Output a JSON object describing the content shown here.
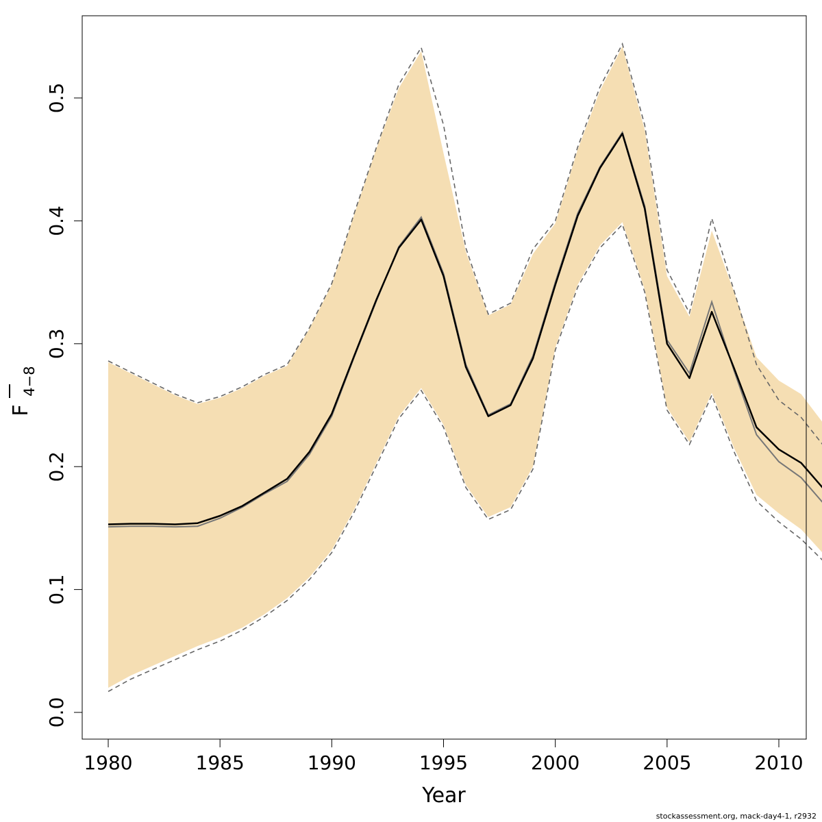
{
  "chart_data": {
    "type": "line",
    "title": "",
    "xlabel": "Year",
    "ylabel": "F̅ 4−8",
    "ylabel_main": "F",
    "ylabel_sub": "4−8",
    "xlim": [
      1980,
      2012
    ],
    "ylim": [
      0,
      0.55
    ],
    "x_ticks": [
      1980,
      1985,
      1990,
      1995,
      2000,
      2005,
      2010
    ],
    "y_ticks": [
      0.0,
      0.1,
      0.2,
      0.3,
      0.4,
      0.5
    ],
    "y_tick_labels": [
      "0.0",
      "0.1",
      "0.2",
      "0.3",
      "0.4",
      "0.5"
    ],
    "grid": false,
    "colors": {
      "band": "#f5deb3",
      "estimate": "#000000",
      "comparison": "#777777",
      "bounds": "#666666"
    },
    "x": [
      1980,
      1981,
      1982,
      1983,
      1984,
      1985,
      1986,
      1987,
      1988,
      1989,
      1990,
      1991,
      1992,
      1993,
      1994,
      1995,
      1996,
      1997,
      1998,
      1999,
      2000,
      2001,
      2002,
      2003,
      2004,
      2005,
      2006,
      2007,
      2008,
      2009,
      2010,
      2011,
      2012
    ],
    "series": [
      {
        "role": "estimate",
        "values": [
          0.153,
          0.1535,
          0.1535,
          0.153,
          0.154,
          0.16,
          0.168,
          0.179,
          0.19,
          0.212,
          0.243,
          0.29,
          0.336,
          0.378,
          0.401,
          0.355,
          0.281,
          0.241,
          0.25,
          0.288,
          0.348,
          0.404,
          0.443,
          0.471,
          0.41,
          0.3,
          0.272,
          0.326,
          0.28,
          0.232,
          0.214,
          0.203,
          0.182
        ]
      },
      {
        "role": "estimate_lower",
        "values": [
          0.02,
          0.03,
          0.038,
          0.046,
          0.054,
          0.061,
          0.069,
          0.08,
          0.093,
          0.11,
          0.132,
          0.165,
          0.203,
          0.241,
          0.264,
          0.234,
          0.185,
          0.159,
          0.167,
          0.2,
          0.297,
          0.348,
          0.38,
          0.399,
          0.344,
          0.248,
          0.22,
          0.26,
          0.215,
          0.177,
          0.162,
          0.149,
          0.129
        ]
      },
      {
        "role": "estimate_upper",
        "values": [
          0.285,
          0.276,
          0.267,
          0.258,
          0.251,
          0.256,
          0.264,
          0.274,
          0.282,
          0.312,
          0.348,
          0.405,
          0.459,
          0.508,
          0.538,
          0.455,
          0.375,
          0.323,
          0.332,
          0.373,
          0.398,
          0.458,
          0.506,
          0.542,
          0.474,
          0.355,
          0.322,
          0.392,
          0.342,
          0.289,
          0.27,
          0.259,
          0.235
        ]
      },
      {
        "role": "comparison",
        "values": [
          0.151,
          0.1515,
          0.1515,
          0.151,
          0.1515,
          0.158,
          0.167,
          0.178,
          0.188,
          0.21,
          0.241,
          0.289,
          0.335,
          0.379,
          0.403,
          0.357,
          0.283,
          0.242,
          0.251,
          0.29,
          0.35,
          0.406,
          0.444,
          0.472,
          0.412,
          0.303,
          0.276,
          0.334,
          0.278,
          0.226,
          0.204,
          0.191,
          0.17
        ]
      },
      {
        "role": "comparison_lower",
        "values": [
          0.017,
          0.027,
          0.035,
          0.043,
          0.051,
          0.058,
          0.067,
          0.078,
          0.091,
          0.108,
          0.13,
          0.163,
          0.201,
          0.239,
          0.262,
          0.232,
          0.183,
          0.157,
          0.165,
          0.198,
          0.295,
          0.346,
          0.378,
          0.397,
          0.342,
          0.246,
          0.218,
          0.258,
          0.212,
          0.172,
          0.155,
          0.141,
          0.123
        ]
      },
      {
        "role": "comparison_upper",
        "values": [
          0.286,
          0.277,
          0.268,
          0.259,
          0.252,
          0.257,
          0.265,
          0.275,
          0.283,
          0.313,
          0.349,
          0.406,
          0.46,
          0.511,
          0.541,
          0.478,
          0.378,
          0.324,
          0.333,
          0.377,
          0.4,
          0.46,
          0.509,
          0.544,
          0.478,
          0.36,
          0.325,
          0.402,
          0.343,
          0.283,
          0.254,
          0.24,
          0.217
        ]
      }
    ]
  },
  "footer": {
    "note": "stockassessment.org, mack-day4-1, r2932"
  }
}
